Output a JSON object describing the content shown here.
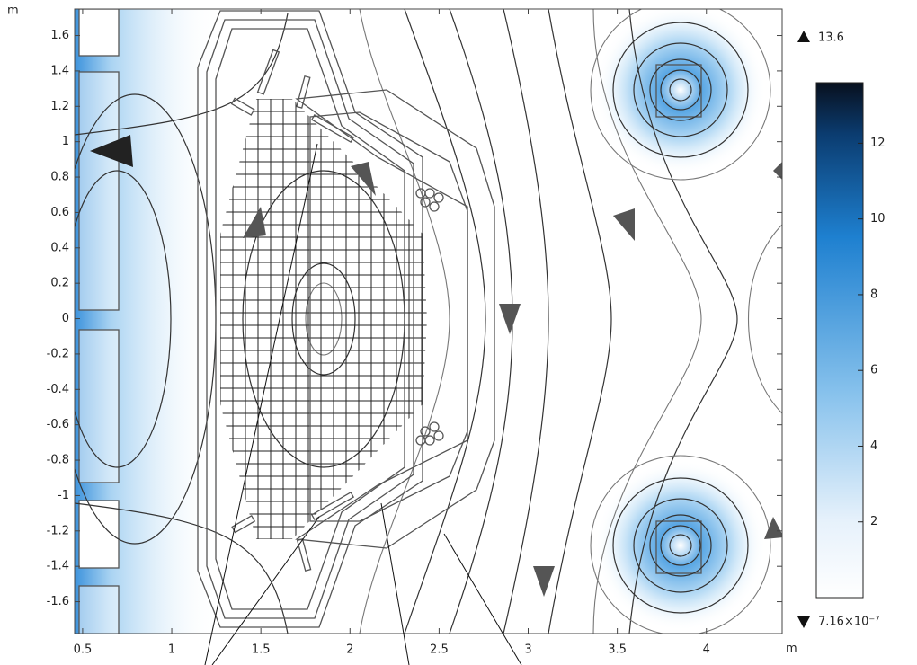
{
  "chart_data": {
    "type": "contour",
    "x_unit": "m",
    "y_unit": "m",
    "xlim": [
      0.455,
      4.425
    ],
    "ylim": [
      -1.78,
      1.75
    ],
    "xticks": [
      0.5,
      1,
      1.5,
      2,
      2.5,
      3,
      3.5,
      4
    ],
    "yticks": [
      1.6,
      1.4,
      1.2,
      1,
      0.8,
      0.6,
      0.4,
      0.2,
      0,
      -0.2,
      -0.4,
      -0.6,
      -0.8,
      -1,
      -1.2,
      -1.4,
      -1.6
    ],
    "colorbar": {
      "clim": [
        7.16e-07,
        13.6
      ],
      "ticks": [
        2,
        4,
        6,
        8,
        10,
        12
      ],
      "max": 13.6,
      "min": {
        "value": 7.16e-07,
        "label": "7.16×10⁻⁷"
      }
    }
  }
}
